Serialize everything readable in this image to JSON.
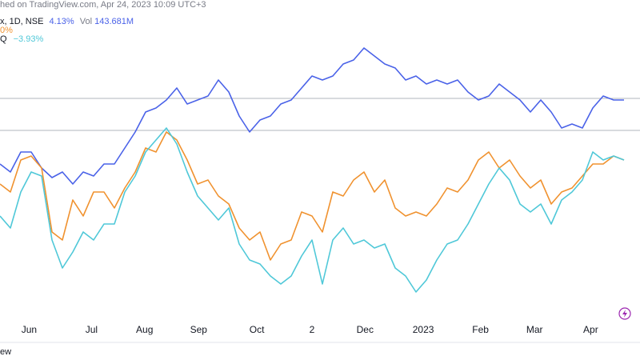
{
  "chart_data": {
    "type": "line",
    "header": "hed on TradingView.com, Apr 24, 2023 10:09 UTC+3",
    "legend": [
      {
        "text": "x, 1D, NSE",
        "change": "4.13%",
        "vol_label": "Vol",
        "vol": "143.681M"
      },
      {
        "change": "0%"
      },
      {
        "text": "Q",
        "change": "−3.93%"
      }
    ],
    "footer": "ew",
    "xlim": [
      0,
      60
    ],
    "ylim": [
      0,
      400
    ],
    "hlines": [
      277,
      237
    ],
    "xticks": [
      {
        "value": 2.8,
        "label": "Jun"
      },
      {
        "value": 8.8,
        "label": "Jul"
      },
      {
        "value": 13.9,
        "label": "Aug"
      },
      {
        "value": 19.1,
        "label": "Sep"
      },
      {
        "value": 24.7,
        "label": "Oct"
      },
      {
        "value": 30,
        "label": "2"
      },
      {
        "value": 35.1,
        "label": "Dec"
      },
      {
        "value": 40.7,
        "label": "2023"
      },
      {
        "value": 46.2,
        "label": "Feb"
      },
      {
        "value": 51.4,
        "label": "Mar"
      },
      {
        "value": 56.8,
        "label": "Apr"
      }
    ],
    "series": [
      {
        "color": "#4a62e8",
        "values": [
          195,
          185,
          210,
          210,
          190,
          178,
          185,
          170,
          185,
          180,
          195,
          195,
          215,
          235,
          260,
          265,
          275,
          290,
          270,
          275,
          280,
          300,
          285,
          255,
          235,
          250,
          255,
          270,
          275,
          290,
          305,
          300,
          305,
          320,
          325,
          340,
          330,
          320,
          315,
          300,
          305,
          295,
          300,
          295,
          300,
          285,
          275,
          280,
          295,
          285,
          275,
          260,
          275,
          260,
          240,
          245,
          240,
          265,
          280,
          275,
          275
        ]
      },
      {
        "color": "#f0922f",
        "values": [
          170,
          160,
          200,
          205,
          190,
          110,
          100,
          150,
          130,
          160,
          160,
          140,
          165,
          185,
          215,
          210,
          235,
          225,
          200,
          170,
          175,
          155,
          145,
          115,
          100,
          110,
          75,
          95,
          100,
          135,
          130,
          110,
          160,
          155,
          175,
          185,
          160,
          175,
          140,
          130,
          135,
          130,
          145,
          165,
          160,
          175,
          200,
          210,
          190,
          200,
          180,
          165,
          175,
          145,
          160,
          165,
          180,
          195,
          195,
          205,
          200
        ]
      },
      {
        "color": "#4fc8d8",
        "values": [
          130,
          115,
          160,
          185,
          180,
          100,
          65,
          85,
          110,
          100,
          120,
          120,
          160,
          180,
          210,
          225,
          240,
          220,
          185,
          155,
          140,
          125,
          140,
          95,
          75,
          70,
          55,
          45,
          55,
          80,
          100,
          45,
          100,
          115,
          95,
          100,
          90,
          95,
          65,
          55,
          35,
          50,
          75,
          95,
          100,
          120,
          145,
          170,
          190,
          175,
          145,
          135,
          145,
          120,
          150,
          160,
          175,
          210,
          200,
          205,
          200
        ]
      }
    ]
  }
}
